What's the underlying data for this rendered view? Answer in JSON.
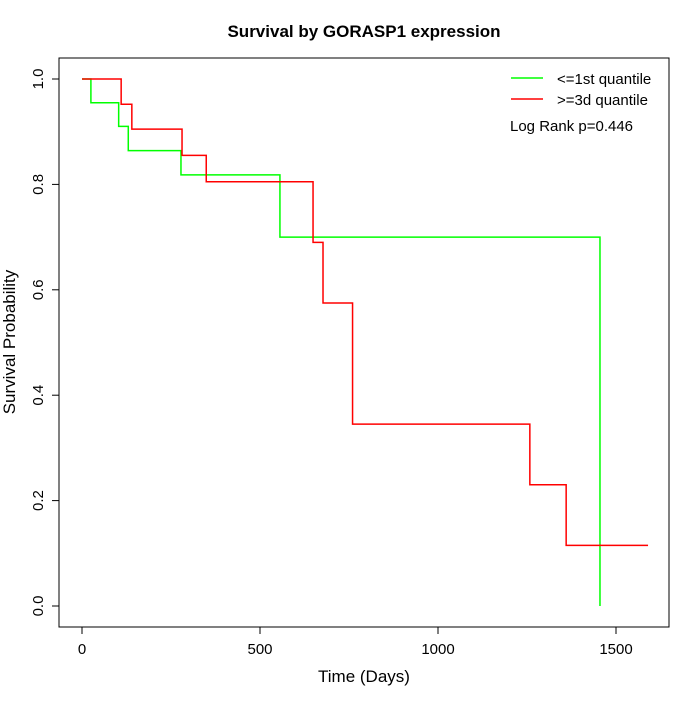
{
  "chart_data": {
    "type": "line",
    "title": "Survival by GORASP1 expression",
    "xlabel": "Time (Days)",
    "ylabel": "Survival Probability",
    "xlim": [
      0,
      1590
    ],
    "ylim": [
      0,
      1
    ],
    "x_ticks": [
      "0",
      "500",
      "1000",
      "1500"
    ],
    "y_ticks": [
      "0.0",
      "0.2",
      "0.4",
      "0.6",
      "0.8",
      "1.0"
    ],
    "grid": false,
    "legend_position": "top-right",
    "annotation": "Log Rank p=0.446",
    "series": [
      {
        "name": "<=1st quantile",
        "color": "#00ff00",
        "step_times": [
          0,
          25,
          103,
          130,
          278,
          556,
          1455
        ],
        "survival": [
          1.0,
          0.955,
          0.91,
          0.864,
          0.818,
          0.7,
          0.0
        ]
      },
      {
        "name": ">=3d quantile",
        "color": "#ff0000",
        "step_times": [
          0,
          110,
          140,
          281,
          349,
          649,
          677,
          760,
          1258,
          1360,
          1590
        ],
        "survival": [
          1.0,
          0.952,
          0.905,
          0.855,
          0.805,
          0.69,
          0.575,
          0.345,
          0.23,
          0.115,
          0.115
        ]
      }
    ]
  }
}
